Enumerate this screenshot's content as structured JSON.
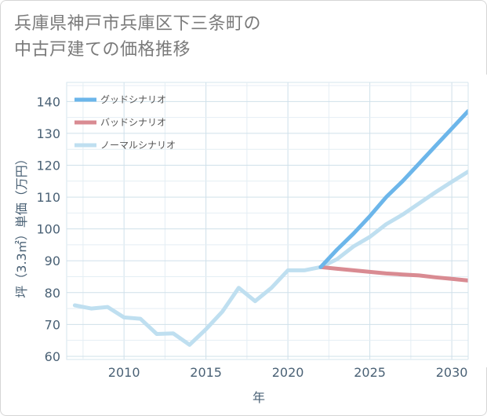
{
  "title_lines": [
    "兵庫県神戸市兵庫区下三条町の",
    "中古戸建ての価格推移"
  ],
  "chart_data": {
    "type": "line",
    "title": "兵庫県神戸市兵庫区下三条町の中古戸建ての価格推移",
    "xlabel": "年",
    "ylabel": "坪（3.3㎡）単価（万円）",
    "xlim": [
      2006.5,
      2031
    ],
    "ylim": [
      59,
      146
    ],
    "xticks": [
      2010,
      2015,
      2020,
      2025,
      2030
    ],
    "yticks": [
      60,
      70,
      80,
      90,
      100,
      110,
      120,
      130,
      140
    ],
    "grid": true,
    "legend_position": "top-left",
    "series": [
      {
        "name": "グッドシナリオ",
        "color": "#6cb6ea",
        "x": [
          2022,
          2023,
          2024,
          2025,
          2026,
          2027,
          2028,
          2029,
          2030,
          2031
        ],
        "y": [
          88,
          93.5,
          98.5,
          104,
          110,
          115,
          120.5,
          126,
          131.5,
          137
        ]
      },
      {
        "name": "バッドシナリオ",
        "color": "#d98b92",
        "x": [
          2022,
          2023,
          2024,
          2025,
          2026,
          2027,
          2028,
          2029,
          2030,
          2031
        ],
        "y": [
          88,
          87.5,
          87,
          86.5,
          86,
          85.7,
          85.4,
          84.8,
          84.3,
          83.8
        ]
      },
      {
        "name": "ノーマルシナリオ",
        "color": "#bfdff0",
        "x": [
          2007,
          2008,
          2009,
          2010,
          2011,
          2012,
          2013,
          2014,
          2015,
          2016,
          2017,
          2018,
          2019,
          2020,
          2021,
          2022,
          2023,
          2024,
          2025,
          2026,
          2027,
          2028,
          2029,
          2030,
          2031
        ],
        "y": [
          76,
          75,
          75.5,
          72.2,
          71.8,
          67,
          67.2,
          63.6,
          68.5,
          74,
          81.5,
          77.3,
          81.5,
          87,
          87,
          88,
          90.5,
          94.5,
          97.5,
          101.5,
          104.5,
          108,
          111.5,
          114.8,
          118
        ]
      }
    ]
  }
}
